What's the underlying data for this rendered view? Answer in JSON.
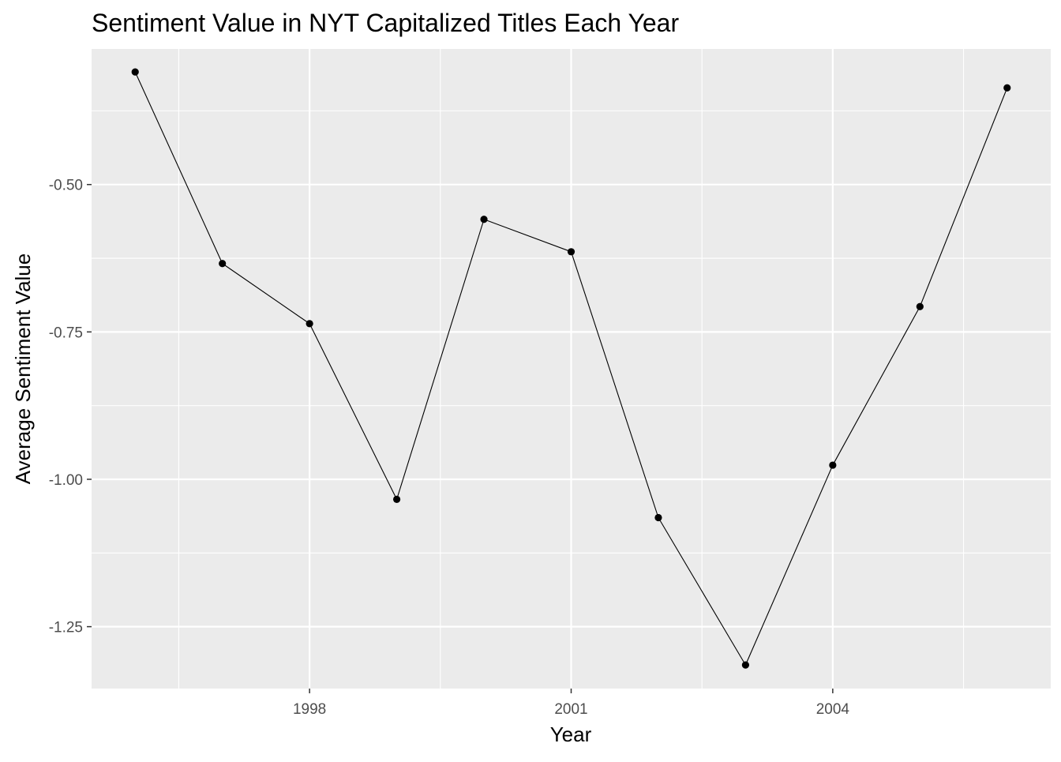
{
  "chart_data": {
    "type": "line",
    "title": "Sentiment Value in NYT Capitalized Titles Each Year",
    "xlabel": "Year",
    "ylabel": "Average Sentiment Value",
    "x": [
      1996,
      1997,
      1998,
      1999,
      2000,
      2001,
      2002,
      2003,
      2004,
      2005,
      2006
    ],
    "series": [
      {
        "values": [
          -0.309,
          -0.634,
          -0.736,
          -1.034,
          -0.559,
          -0.614,
          -1.065,
          -1.315,
          -0.976,
          -0.707,
          -0.336
        ]
      }
    ],
    "xlim": [
      1995.5,
      2006.5
    ],
    "ylim": [
      -1.355,
      -0.27
    ],
    "x_ticks": [
      "1998",
      "2001",
      "2004"
    ],
    "x_tick_values": [
      1998,
      2001,
      2004
    ],
    "y_ticks": [
      "-0.50",
      "-0.75",
      "-1.00",
      "-1.25"
    ],
    "y_tick_values": [
      -0.5,
      -0.75,
      -1.0,
      -1.25
    ],
    "grid": true,
    "panel_color": "#ebebeb",
    "grid_color": "#ffffff",
    "line_color": "#000000",
    "point_color": "#000000",
    "tick_label_color": "#4d4d4d"
  }
}
